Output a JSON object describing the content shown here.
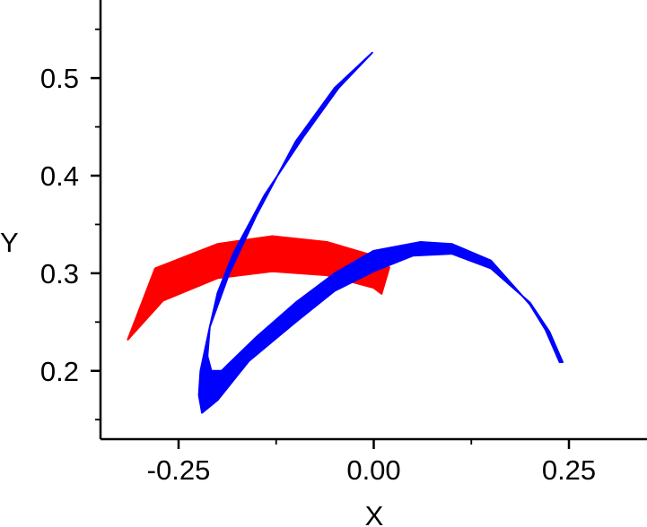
{
  "chart_data": {
    "type": "area",
    "xlabel": "X",
    "ylabel": "Y",
    "xlim": [
      -0.35,
      0.35
    ],
    "ylim": [
      0.13,
      0.58
    ],
    "xticks": [
      -0.25,
      0.0,
      0.25
    ],
    "xtick_labels": [
      "-0.25",
      "0.00",
      "0.25"
    ],
    "yticks": [
      0.2,
      0.3,
      0.4,
      0.5
    ],
    "ytick_labels": [
      "0.2",
      "0.3",
      "0.4",
      "0.5"
    ],
    "grid": false,
    "series": [
      {
        "color": "#ff0000",
        "upper": [
          [
            -0.28,
            0.305
          ],
          [
            -0.2,
            0.33
          ],
          [
            -0.13,
            0.338
          ],
          [
            -0.06,
            0.332
          ],
          [
            0.0,
            0.318
          ],
          [
            0.02,
            0.306
          ]
        ],
        "lower": [
          [
            -0.315,
            0.232
          ],
          [
            -0.27,
            0.272
          ],
          [
            -0.2,
            0.295
          ],
          [
            -0.13,
            0.302
          ],
          [
            -0.06,
            0.298
          ],
          [
            0.0,
            0.285
          ],
          [
            0.01,
            0.279
          ]
        ]
      },
      {
        "color": "#0000ff",
        "outer": [
          [
            -0.002,
            0.526
          ],
          [
            -0.05,
            0.49
          ],
          [
            -0.1,
            0.435
          ],
          [
            -0.15,
            0.36
          ],
          [
            -0.185,
            0.3
          ],
          [
            -0.21,
            0.245
          ],
          [
            -0.222,
            0.2
          ],
          [
            -0.224,
            0.175
          ],
          [
            -0.22,
            0.157
          ],
          [
            -0.2,
            0.17
          ],
          [
            -0.16,
            0.21
          ],
          [
            -0.1,
            0.25
          ],
          [
            -0.05,
            0.282
          ],
          [
            0.0,
            0.302
          ],
          [
            0.05,
            0.318
          ],
          [
            0.1,
            0.32
          ],
          [
            0.15,
            0.305
          ],
          [
            0.2,
            0.27
          ],
          [
            0.225,
            0.24
          ],
          [
            0.242,
            0.209
          ]
        ],
        "inner": [
          [
            0.238,
            0.209
          ],
          [
            0.22,
            0.242
          ],
          [
            0.2,
            0.268
          ],
          [
            0.15,
            0.313
          ],
          [
            0.1,
            0.33
          ],
          [
            0.06,
            0.332
          ],
          [
            0.0,
            0.323
          ],
          [
            -0.05,
            0.3
          ],
          [
            -0.1,
            0.27
          ],
          [
            -0.15,
            0.235
          ],
          [
            -0.195,
            0.2
          ],
          [
            -0.208,
            0.2
          ],
          [
            -0.213,
            0.215
          ],
          [
            -0.21,
            0.245
          ],
          [
            -0.2,
            0.28
          ],
          [
            -0.18,
            0.32
          ],
          [
            -0.14,
            0.38
          ],
          [
            -0.09,
            0.44
          ],
          [
            -0.045,
            0.49
          ],
          [
            -0.002,
            0.526
          ]
        ]
      }
    ]
  }
}
